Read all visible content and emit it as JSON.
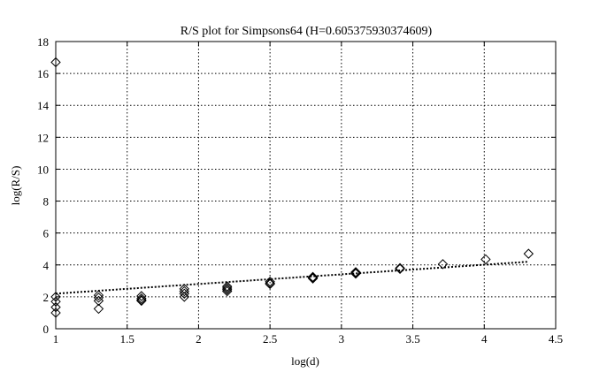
{
  "chart_data": {
    "type": "scatter",
    "title": "R/S plot for Simpsons64 (H=0.605375930374609)",
    "xlabel": "log(d)",
    "ylabel": "log(R/S)",
    "xlim": [
      1,
      4.5
    ],
    "ylim": [
      0,
      18
    ],
    "xticks": [
      1,
      1.5,
      2,
      2.5,
      3,
      3.5,
      4,
      4.5
    ],
    "xtick_labels": [
      "1",
      "1.5",
      "2",
      "2.5",
      "3",
      "3.5",
      "4",
      "4.5"
    ],
    "yticks": [
      0,
      2,
      4,
      6,
      8,
      10,
      12,
      14,
      16,
      18
    ],
    "ytick_labels": [
      "0",
      "2",
      "4",
      "6",
      "8",
      "10",
      "12",
      "14",
      "16",
      "18"
    ],
    "grid": true,
    "marker": "diamond",
    "series": [
      {
        "points": [
          [
            1.0,
            16.7
          ],
          [
            1.0,
            2.0
          ],
          [
            1.0,
            1.7
          ],
          [
            1.0,
            1.35
          ],
          [
            1.0,
            1.0
          ],
          [
            1.3,
            2.1
          ],
          [
            1.3,
            1.95
          ],
          [
            1.3,
            1.75
          ],
          [
            1.3,
            1.25
          ],
          [
            1.6,
            2.05
          ],
          [
            1.6,
            1.9
          ],
          [
            1.6,
            1.8
          ],
          [
            1.6,
            1.75
          ],
          [
            1.9,
            2.5
          ],
          [
            1.9,
            2.35
          ],
          [
            1.9,
            2.2
          ],
          [
            1.9,
            2.0
          ],
          [
            2.2,
            2.65
          ],
          [
            2.2,
            2.55
          ],
          [
            2.2,
            2.45
          ],
          [
            2.2,
            2.35
          ],
          [
            2.5,
            2.95
          ],
          [
            2.5,
            2.85
          ],
          [
            2.5,
            2.8
          ],
          [
            2.8,
            3.25
          ],
          [
            2.8,
            3.2
          ],
          [
            2.8,
            3.15
          ],
          [
            3.1,
            3.55
          ],
          [
            3.1,
            3.5
          ],
          [
            3.1,
            3.45
          ],
          [
            3.41,
            3.8
          ],
          [
            3.41,
            3.75
          ],
          [
            3.71,
            4.05
          ],
          [
            4.01,
            4.35
          ],
          [
            4.31,
            4.7
          ]
        ]
      }
    ],
    "fit_line": {
      "style": "dotted",
      "x": [
        1.0,
        4.31
      ],
      "y": [
        2.2,
        4.2
      ]
    }
  }
}
